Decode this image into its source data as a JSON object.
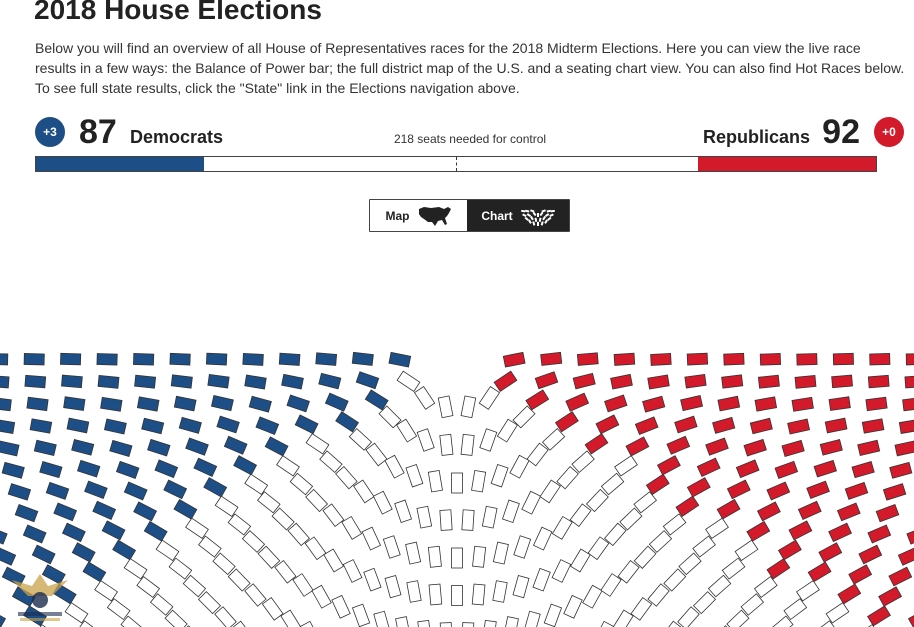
{
  "page": {
    "title": "2018 House Elections",
    "intro": "Below you will find an overview of all House of Representatives races for the 2018 Midterm Elections. Here you can view the live race results in a few ways: the Balance of Power bar; the full district map of the U.S. and a seating chart view. You can also find Hot Races below. To see full state results, click the \"State\" link in the Elections navigation above."
  },
  "balance": {
    "democrats": {
      "change": "+3",
      "seats": "87",
      "label": "Democrats",
      "color": "#1d4f86"
    },
    "republicans": {
      "change": "+0",
      "seats": "92",
      "label": "Republicans",
      "color": "#d21a2b"
    },
    "control_note": "218 seats needed for control",
    "total_seats": 435,
    "dem_seat_count": 87,
    "rep_seat_count": 92
  },
  "view_toggle": {
    "map_label": "Map",
    "chart_label": "Chart",
    "active": "chart",
    "icons": {
      "map": "us-map-icon",
      "chart": "seating-chart-icon"
    }
  },
  "colors": {
    "dem": "#1d4f86",
    "rep": "#d21a2b",
    "empty": "#ffffff",
    "outline": "#333333"
  }
}
